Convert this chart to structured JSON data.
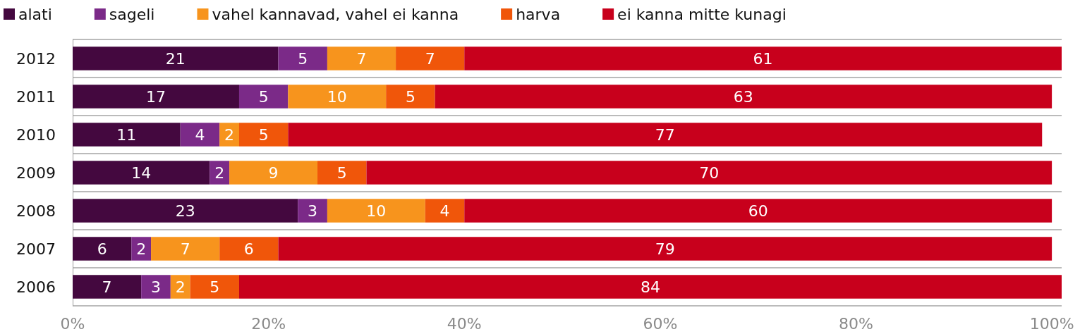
{
  "chart_data": {
    "type": "bar",
    "orientation": "horizontal",
    "stacked": true,
    "categories": [
      "2012",
      "2011",
      "2010",
      "2009",
      "2008",
      "2007",
      "2006"
    ],
    "series": [
      {
        "name": "alati",
        "color": "#44083f",
        "values": [
          21,
          17,
          11,
          14,
          23,
          6,
          7
        ]
      },
      {
        "name": "sageli",
        "color": "#7b2a88",
        "values": [
          5,
          5,
          4,
          2,
          3,
          2,
          3
        ]
      },
      {
        "name": "vahel kannavad, vahel ei kanna",
        "color": "#f7941d",
        "values": [
          7,
          10,
          2,
          9,
          10,
          7,
          2
        ]
      },
      {
        "name": "harva",
        "color": "#f0560a",
        "values": [
          7,
          5,
          5,
          5,
          4,
          6,
          5
        ]
      },
      {
        "name": "ei kanna mitte kunagi",
        "color": "#c8001c",
        "values": [
          61,
          63,
          77,
          70,
          60,
          79,
          84
        ]
      }
    ],
    "xlim": [
      0,
      101
    ],
    "xticks": [
      {
        "value": 0,
        "label": "0%"
      },
      {
        "value": 20,
        "label": "20%"
      },
      {
        "value": 40,
        "label": "40%"
      },
      {
        "value": 60,
        "label": "60%"
      },
      {
        "value": 80,
        "label": "80%"
      },
      {
        "value": 100,
        "label": "100%"
      }
    ],
    "data_labels": true,
    "grid": "y",
    "legend": "top"
  }
}
